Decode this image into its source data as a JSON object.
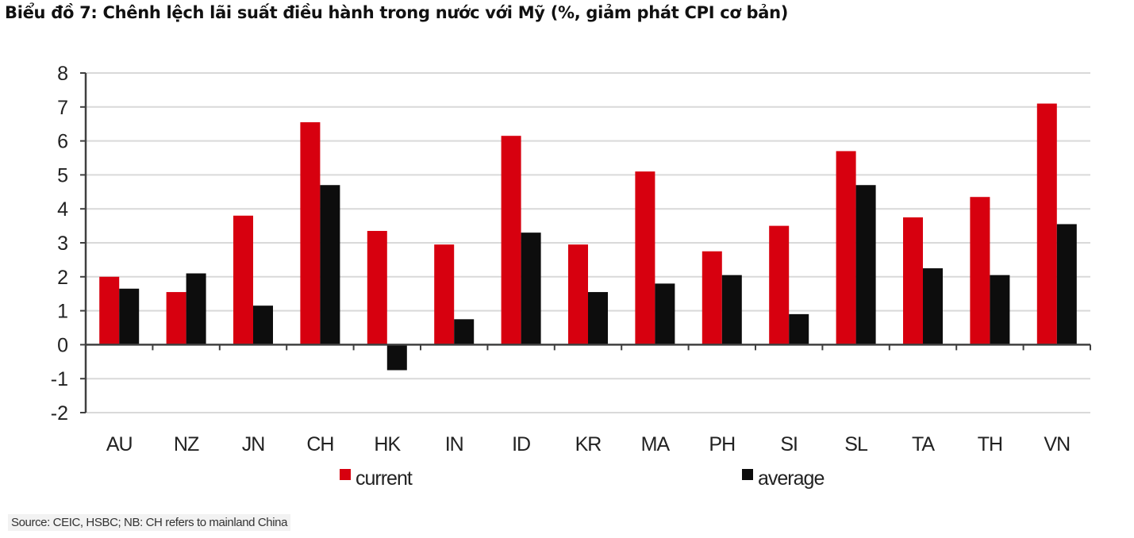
{
  "title": "Biểu đồ 7: Chênh lệch lãi suất điều hành trong nước với Mỹ (%, giảm phát CPI cơ bản)",
  "source": "Source: CEIC, HSBC; NB: CH refers to mainland China",
  "colors": {
    "current": "#d7000f",
    "average": "#0d0d0d",
    "grid": "#d9d9d9",
    "axis": "#404040",
    "tick_label": "#222222"
  },
  "chart_data": {
    "type": "bar",
    "title": "Biểu đồ 7: Chênh lệch lãi suất điều hành trong nước với Mỹ (%, giảm phát CPI cơ bản)",
    "xlabel": "",
    "ylabel": "",
    "ylim": [
      -2,
      8
    ],
    "yticks": [
      8,
      7,
      6,
      5,
      4,
      3,
      2,
      1,
      0,
      -1,
      -2
    ],
    "grid": true,
    "legend_position": "bottom",
    "categories": [
      "AU",
      "NZ",
      "JN",
      "CH",
      "HK",
      "IN",
      "ID",
      "KR",
      "MA",
      "PH",
      "SI",
      "SL",
      "TA",
      "TH",
      "VN"
    ],
    "series": [
      {
        "name": "current",
        "color": "#d7000f",
        "values": [
          2.0,
          1.55,
          3.8,
          6.55,
          3.35,
          2.95,
          6.15,
          2.95,
          5.1,
          2.75,
          3.5,
          5.7,
          3.75,
          4.35,
          7.1
        ]
      },
      {
        "name": "average",
        "color": "#0d0d0d",
        "values": [
          1.65,
          2.1,
          1.15,
          4.7,
          -0.75,
          0.75,
          3.3,
          1.55,
          1.8,
          2.05,
          0.9,
          4.7,
          2.25,
          2.05,
          3.55
        ]
      }
    ]
  }
}
